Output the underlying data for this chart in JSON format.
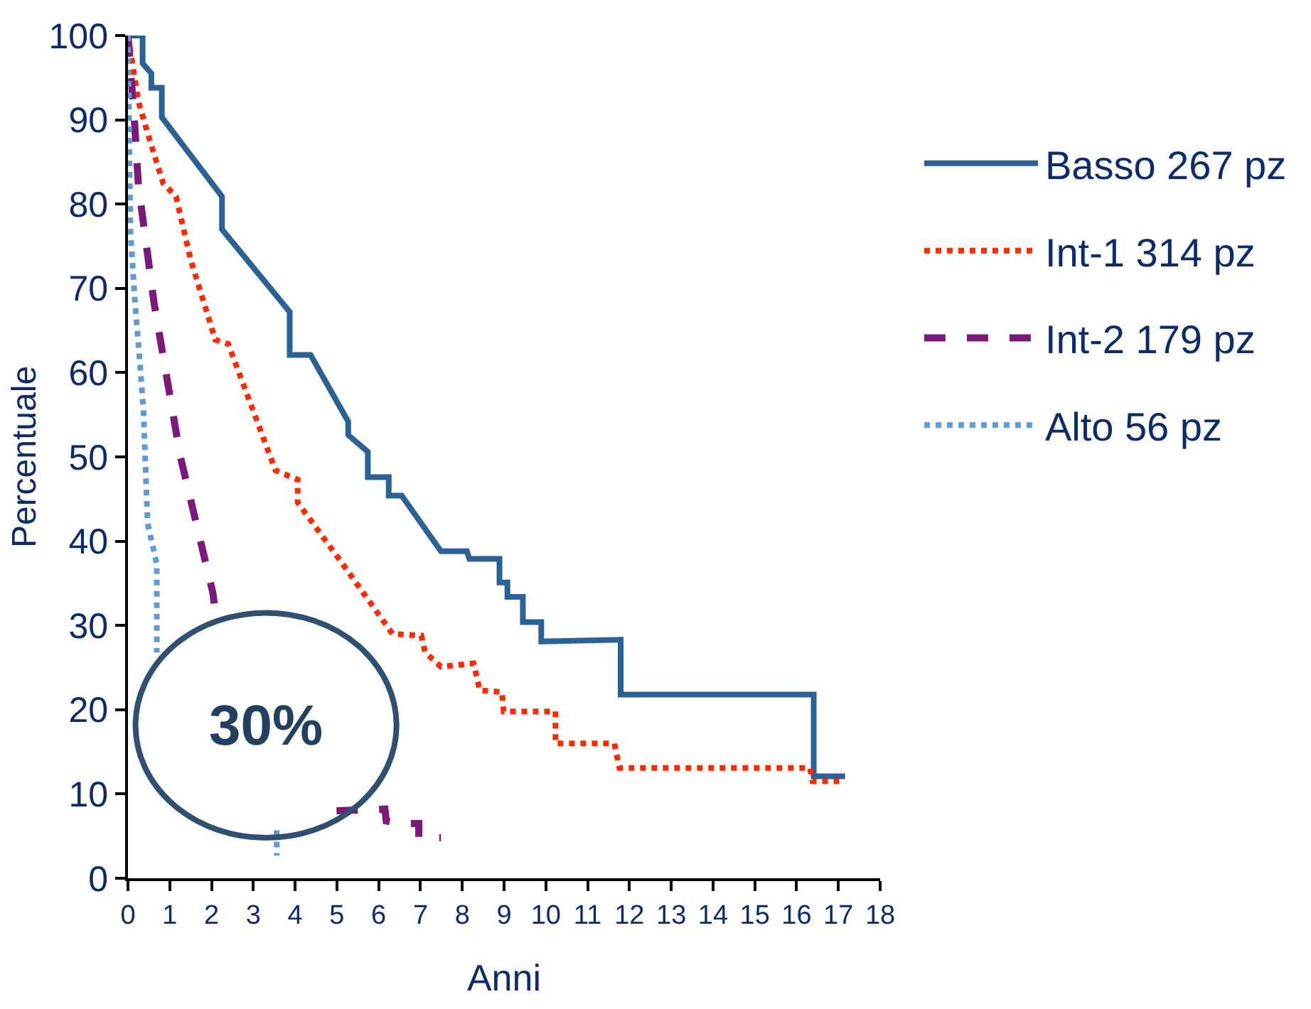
{
  "chart_data": {
    "type": "line",
    "xlabel": "Anni",
    "ylabel": "Percentuale",
    "xlim": [
      0,
      18
    ],
    "xticks": [
      0,
      1,
      2,
      3,
      4,
      5,
      6,
      7,
      8,
      9,
      10,
      11,
      12,
      13,
      14,
      15,
      16,
      17,
      18
    ],
    "ylim": [
      0,
      100
    ],
    "yticks": [
      0,
      10,
      20,
      30,
      40,
      50,
      60,
      70,
      80,
      90,
      100
    ],
    "legend": "top right",
    "marker": "none",
    "annotations": [
      "30%"
    ],
    "series": [
      {
        "name": "Basso 267 pz",
        "color": "#2b6195",
        "line_style": "solid",
        "x": [
          0,
          0.35,
          0.35,
          0.56,
          0.56,
          0.81,
          0.81,
          2.25,
          2.25,
          3.87,
          3.87,
          4.37,
          5.27,
          5.27,
          5.74,
          5.74,
          6.24,
          6.24,
          6.55,
          7.49,
          8.11,
          8.17,
          8.89,
          8.89,
          9.08,
          9.08,
          9.45,
          9.45,
          9.89,
          9.89,
          11.79,
          11.79,
          16.41,
          16.41,
          17.16
        ],
        "values": [
          100,
          100,
          96.7,
          95.5,
          93.8,
          93.8,
          90.3,
          80.9,
          77,
          67.2,
          62.1,
          62.1,
          54.2,
          52.6,
          50.6,
          47.6,
          47.6,
          45.4,
          45.4,
          38.8,
          38.8,
          37.9,
          37.9,
          35.1,
          35.1,
          33.4,
          33.4,
          30.4,
          30.4,
          28.1,
          28.3,
          21.8,
          21.8,
          12.1,
          12.1
        ]
      },
      {
        "name": "Int-1 314 pz",
        "color": "#ff2a00",
        "line_style": "dotted",
        "x": [
          0,
          0.25,
          0.47,
          0.84,
          1.15,
          1.5,
          2.09,
          2.4,
          3.53,
          4.06,
          4.06,
          5.21,
          6.33,
          7.02,
          7.11,
          7.49,
          8.27,
          8.42,
          8.95,
          8.99,
          10.23,
          10.23,
          11.64,
          11.76,
          16.32,
          16.38,
          17.16
        ],
        "values": [
          100,
          92.2,
          88.4,
          82.5,
          80.9,
          73.4,
          63.9,
          63.4,
          48.4,
          47.3,
          44.6,
          36.8,
          29,
          28.8,
          26.8,
          25.1,
          25.5,
          22.3,
          22.1,
          19.8,
          19.8,
          16,
          16,
          13.1,
          13.1,
          11.5,
          11.5
        ]
      },
      {
        "name": "Int-2 179 pz",
        "color": "#7b1a7a",
        "line_style": "dashed",
        "x": [
          0,
          0.16,
          0.25,
          0.62,
          1.25,
          2.03,
          2.12,
          3,
          4.99,
          6.15,
          6.18,
          6.46,
          6.96,
          6.96,
          7.49
        ],
        "values": [
          100,
          89.5,
          82.2,
          68.4,
          50.1,
          33.9,
          30.6,
          null,
          8,
          8.2,
          6.8,
          6.5,
          6.5,
          4.8,
          4.8
        ]
      },
      {
        "name": "Alto 56 pz",
        "color": "#5f9ad0",
        "line_style": "dotted",
        "x": [
          0,
          0.03,
          0.06,
          0.16,
          0.25,
          0.37,
          0.41,
          0.47,
          0.69,
          0.69,
          2,
          3.56,
          3.56
        ],
        "values": [
          100,
          87.2,
          76.7,
          68.9,
          63.4,
          55.6,
          50.1,
          42.1,
          37.3,
          26.8,
          null,
          5.7,
          2.7
        ]
      }
    ]
  }
}
